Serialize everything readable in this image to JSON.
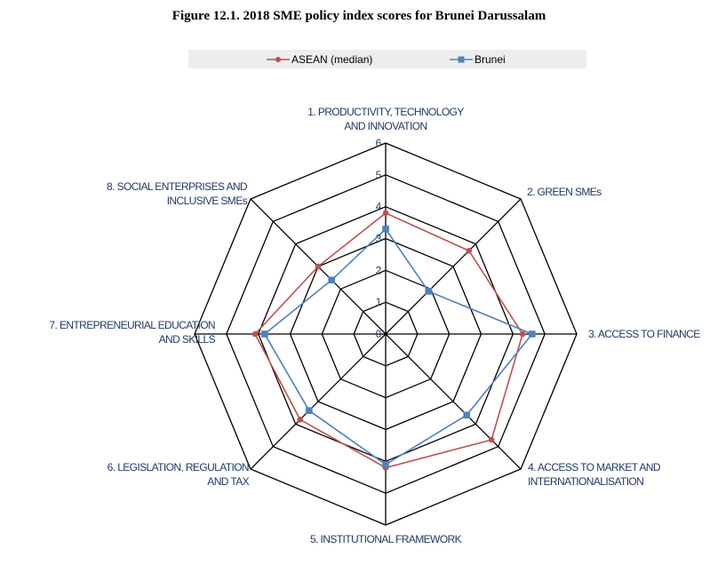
{
  "chart_data": {
    "type": "radar",
    "title": "Figure 12.1. 2018 SME policy index scores for Brunei Darussalam",
    "axes": [
      [
        "1. PRODUCTIVITY, TECHNOLOGY",
        "AND INNOVATION"
      ],
      [
        "2. GREEN SMEs"
      ],
      [
        "3. ACCESS TO FINANCE"
      ],
      [
        "4. ACCESS TO MARKET AND",
        "INTERNATIONALISATION"
      ],
      [
        "5. INSTITUTIONAL FRAMEWORK"
      ],
      [
        "6. LEGISLATION, REGULATION",
        "AND TAX"
      ],
      [
        "7. ENTREPRENEURIAL EDUCATION",
        "AND SKILLS"
      ],
      [
        "8. SOCIAL ENTERPRISES AND",
        "INCLUSIVE SMEs"
      ]
    ],
    "range": [
      0,
      6
    ],
    "ticks": [
      "0",
      "1",
      "2",
      "3",
      "4",
      "5",
      "6"
    ],
    "series": [
      {
        "name": "ASEAN (median)",
        "color": "#c0504d",
        "marker": "circle",
        "values": [
          3.8,
          3.7,
          4.3,
          4.7,
          4.2,
          3.8,
          4.1,
          3.0
        ]
      },
      {
        "name": "Brunei",
        "color": "#4f81bd",
        "marker": "square",
        "values": [
          3.3,
          1.9,
          4.6,
          3.6,
          4.1,
          3.4,
          3.8,
          2.4
        ]
      }
    ],
    "legend": "top"
  },
  "legend_items": [
    "ASEAN (median)",
    "Brunei"
  ]
}
